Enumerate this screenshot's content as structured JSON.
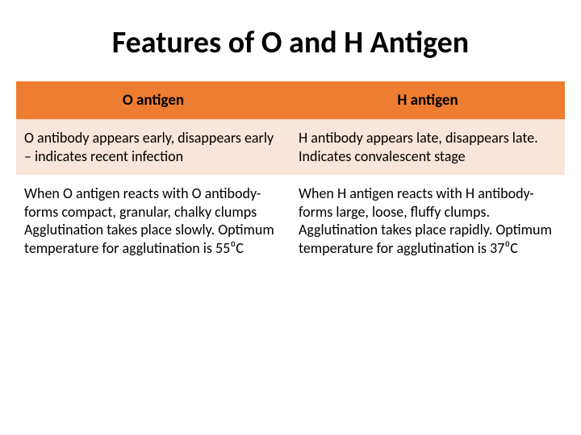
{
  "title": "Features of O and H Antigen",
  "table": {
    "type": "table",
    "columns": [
      {
        "label": "O antigen",
        "bg": "#ed7d31",
        "fontsize": 19,
        "fontweight": "bold",
        "align": "center"
      },
      {
        "label": "H antigen",
        "bg": "#ed7d31",
        "fontsize": 19,
        "fontweight": "bold",
        "align": "center"
      }
    ],
    "rows": [
      {
        "bg": "#f9e5d9",
        "cells": [
          "O antibody appears early, disappears early – indicates recent infection",
          "H antibody appears late, disappears late. Indicates convalescent stage"
        ]
      },
      {
        "bg": "#ffffff",
        "cells": [
          "When O antigen reacts with O antibody- forms compact, granular, chalky clumps Agglutination takes place slowly. Optimum temperature for agglutination is 55⁰C",
          "When H antigen reacts with H antibody- forms large, loose, fluffy clumps. Agglutination takes place rapidly. Optimum temperature for agglutination is 37⁰C"
        ]
      }
    ],
    "cell_fontsize": 18,
    "text_color": "#000000"
  },
  "background_color": "#ffffff"
}
